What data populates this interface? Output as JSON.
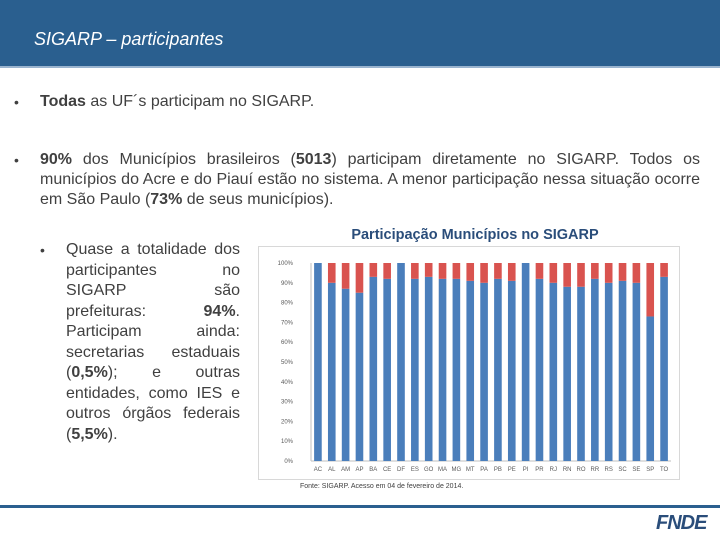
{
  "header": {
    "title": "SIGARP – participantes"
  },
  "bullets": {
    "b1": {
      "bold": "Todas",
      "rest": " as UF´s participam no SIGARP."
    },
    "b2": {
      "bold1": "90%",
      "t1": " dos Municípios brasileiros (",
      "bold2": "5013",
      "t2": ") participam diretamente no SIGARP. Todos os municípios do Acre e do Piauí estão no sistema. A menor participação nessa situação ocorre em São Paulo (",
      "bold3": "73%",
      "t3": " de seus municípios)."
    },
    "b3": {
      "t1": "Quase a totalidade dos participantes no SIGARP são prefeituras: ",
      "bold1": "94%",
      "t2": ". Participam ainda: secretarias estaduais (",
      "bold2": "0,5%",
      "t3": "); e outras entidades, como IES e outros órgãos federais (",
      "bold3": "5,5%",
      "t4": ")."
    }
  },
  "chart_data": {
    "type": "bar",
    "stacked": true,
    "title": "Participação Municípios no SIGARP",
    "categories": [
      "AC",
      "AL",
      "AM",
      "AP",
      "BA",
      "CE",
      "DF",
      "ES",
      "GO",
      "MA",
      "MG",
      "MT",
      "PA",
      "PB",
      "PE",
      "PI",
      "PR",
      "RJ",
      "RN",
      "RO",
      "RR",
      "RS",
      "SC",
      "SE",
      "SP",
      "TO"
    ],
    "series": [
      {
        "values": [
          100,
          90,
          87,
          85,
          93,
          92,
          100,
          92,
          93,
          92,
          92,
          91,
          90,
          92,
          91,
          100,
          92,
          90,
          88,
          88,
          92,
          90,
          91,
          90,
          73,
          93
        ]
      },
      {
        "values": [
          0,
          10,
          13,
          15,
          7,
          8,
          0,
          8,
          7,
          8,
          8,
          9,
          10,
          8,
          9,
          0,
          8,
          10,
          12,
          12,
          8,
          10,
          9,
          10,
          27,
          7
        ]
      }
    ],
    "colors": [
      "#4a7ebb",
      "#d9534f"
    ],
    "ylim": [
      0,
      100
    ],
    "yticks": [
      "0%",
      "10%",
      "20%",
      "30%",
      "40%",
      "50%",
      "60%",
      "70%",
      "80%",
      "90%",
      "100%"
    ],
    "grid": false
  },
  "source": "Fonte: SIGARP. Acesso em 04 de fevereiro de 2014.",
  "logo": "FNDE"
}
